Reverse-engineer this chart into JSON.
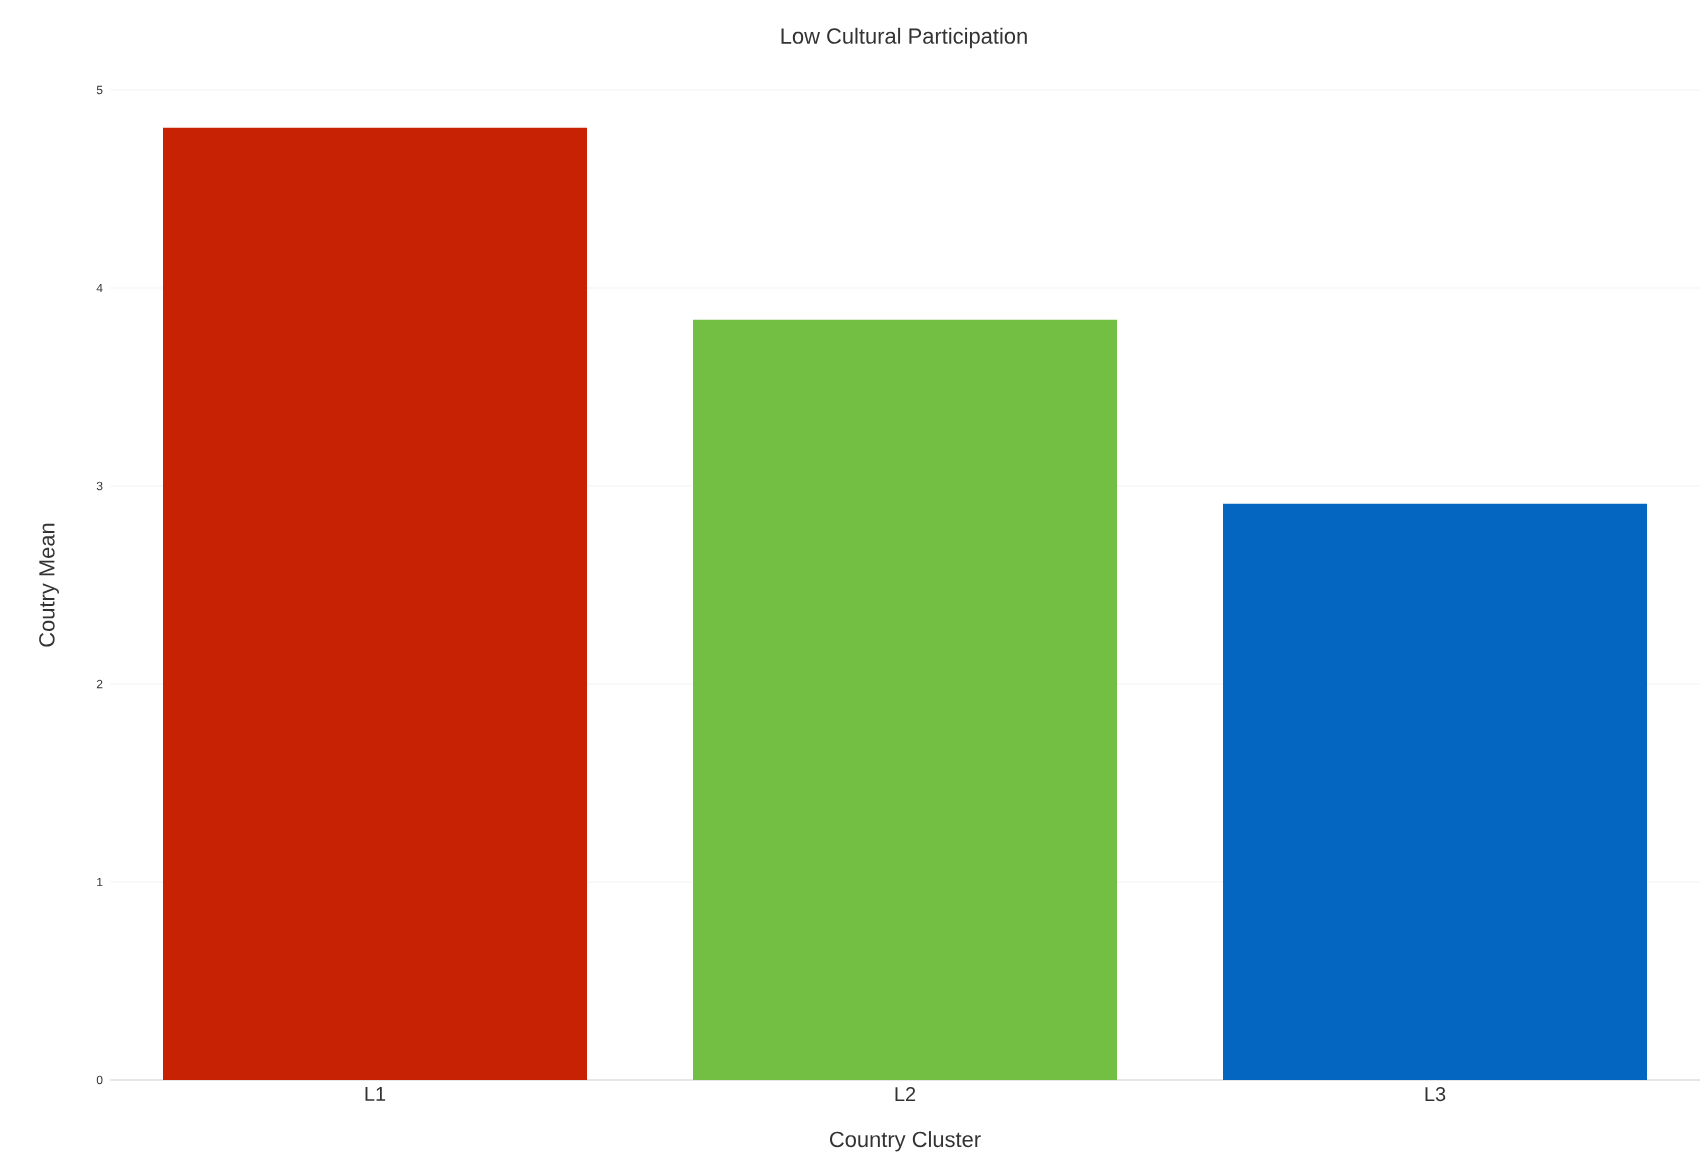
{
  "chart_data": {
    "type": "bar",
    "title": "Low Cultural Participation",
    "xlabel": "Country Cluster",
    "ylabel": "Coutry Mean",
    "categories": [
      "L1",
      "L2",
      "L3"
    ],
    "values": [
      4.81,
      3.84,
      2.91
    ],
    "colors": [
      "#c82204",
      "#72bf44",
      "#0566c1"
    ],
    "ylim": [
      0,
      5
    ],
    "yticks": [
      0,
      1,
      2,
      3,
      4,
      5
    ],
    "grid": "y"
  }
}
